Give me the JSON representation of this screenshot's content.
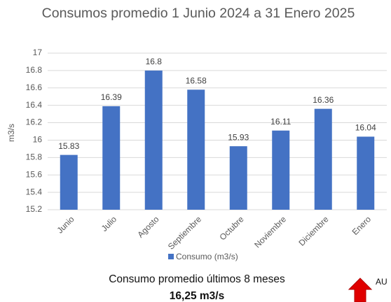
{
  "chart_data": {
    "type": "bar",
    "title": "Consumos promedio 1 Junio 2024 a 31 Enero 2025",
    "y_label": "m3/s",
    "categories": [
      "Junio",
      "Julio",
      "Agosto",
      "Septiembre",
      "Octubre",
      "Noviembre",
      "Diciembre",
      "Enero"
    ],
    "series": [
      {
        "name": "Consumo (m3/s)",
        "color": "#4472c4",
        "values": [
          15.83,
          16.39,
          16.8,
          16.58,
          15.93,
          16.11,
          16.36,
          16.04
        ]
      }
    ],
    "ylim": [
      15.2,
      17
    ],
    "yticks": [
      15.2,
      15.4,
      15.6,
      15.8,
      16,
      16.2,
      16.4,
      16.6,
      16.8,
      17
    ],
    "grid": true,
    "legend": "bottom"
  },
  "summary": {
    "text": "Consumo promedio últimos 8 meses",
    "value": "16,25 m3/s"
  },
  "indicator": {
    "label": "AU"
  }
}
